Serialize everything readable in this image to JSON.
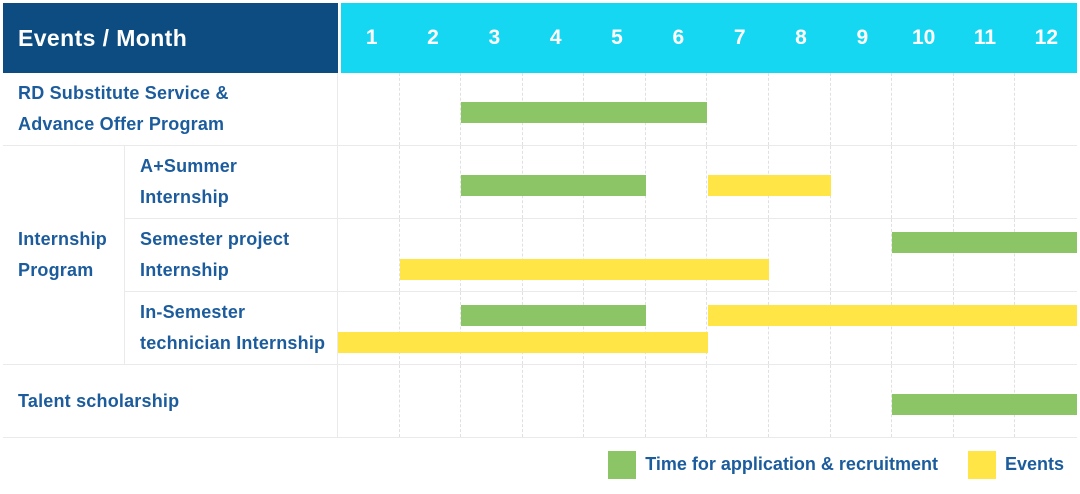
{
  "header": {
    "title": "Events / Month",
    "months": [
      "1",
      "2",
      "3",
      "4",
      "5",
      "6",
      "7",
      "8",
      "9",
      "10",
      "11",
      "12"
    ]
  },
  "colors": {
    "header_bg": "#0d4c80",
    "months_bg": "#15d7f2",
    "application": "#8bc566",
    "event": "#ffe545",
    "label_text": "#1c5c9d"
  },
  "chart_data": {
    "type": "gantt",
    "title": "Events / Month",
    "x_unit": "month",
    "x_ticks": [
      1,
      2,
      3,
      4,
      5,
      6,
      7,
      8,
      9,
      10,
      11,
      12
    ],
    "grid": true,
    "legend_position": "bottom-right",
    "legend": [
      {
        "key": "application",
        "label": "Time for application & recruitment",
        "color": "#8bc566"
      },
      {
        "key": "event",
        "label": "Events",
        "color": "#ffe545"
      }
    ],
    "group": {
      "label": "Internship Program",
      "lines": [
        "Internship",
        "Program"
      ]
    },
    "rows": [
      {
        "group": "",
        "label": "RD Substitute Service & Advance Offer Program",
        "lines": [
          "RD Substitute Service &",
          "Advance Offer Program"
        ],
        "bars": [
          {
            "kind": "application",
            "start_month": 3,
            "end_month": 6,
            "lane": "middle"
          }
        ]
      },
      {
        "group": "Internship Program",
        "label": "A+Summer Internship",
        "lines": [
          "A+Summer",
          "Internship"
        ],
        "bars": [
          {
            "kind": "application",
            "start_month": 3,
            "end_month": 5,
            "lane": "middle"
          },
          {
            "kind": "event",
            "start_month": 7,
            "end_month": 8,
            "lane": "middle"
          }
        ]
      },
      {
        "group": "Internship Program",
        "label": "Semester project Internship",
        "lines": [
          "Semester project",
          "Internship"
        ],
        "bars": [
          {
            "kind": "application",
            "start_month": 10,
            "end_month": 12,
            "lane": "top"
          },
          {
            "kind": "event",
            "start_month": 2,
            "end_month": 7,
            "lane": "bottom"
          }
        ]
      },
      {
        "group": "Internship Program",
        "label": "In-Semester technician Internship",
        "lines": [
          "In-Semester",
          "technician Internship"
        ],
        "bars": [
          {
            "kind": "application",
            "start_month": 3,
            "end_month": 5,
            "lane": "top"
          },
          {
            "kind": "event",
            "start_month": 7,
            "end_month": 12,
            "lane": "top"
          },
          {
            "kind": "event",
            "start_month": 1,
            "end_month": 6,
            "lane": "bottom"
          }
        ]
      },
      {
        "group": "",
        "label": "Talent scholarship",
        "lines": [
          "Talent scholarship"
        ],
        "bars": [
          {
            "kind": "application",
            "start_month": 10,
            "end_month": 12,
            "lane": "middle"
          }
        ]
      }
    ]
  }
}
